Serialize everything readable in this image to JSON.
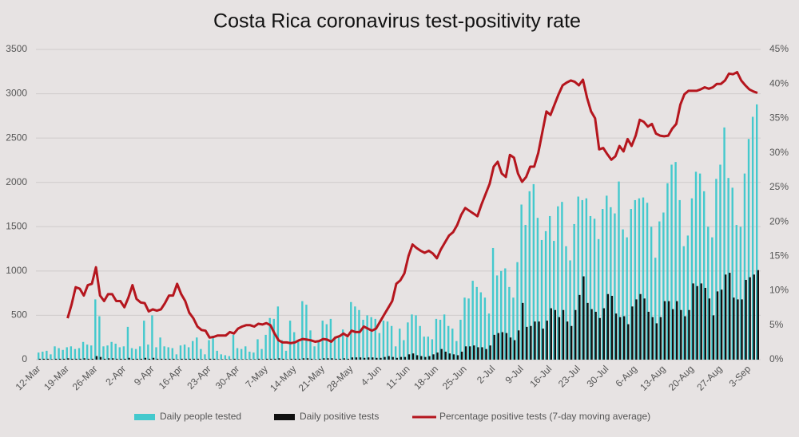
{
  "chart_data": {
    "type": "bar-line",
    "title": "Costa Rica coronavirus test-positivity rate",
    "categories": [
      "12-Mar",
      null,
      null,
      null,
      null,
      null,
      null,
      "19-Mar",
      null,
      null,
      null,
      null,
      null,
      null,
      "26-Mar",
      null,
      null,
      null,
      null,
      null,
      null,
      "2-Apr",
      null,
      null,
      null,
      null,
      null,
      null,
      "9-Apr",
      null,
      null,
      null,
      null,
      null,
      null,
      "16-Apr",
      null,
      null,
      null,
      null,
      null,
      null,
      "23-Apr",
      null,
      null,
      null,
      null,
      null,
      null,
      "30-Apr",
      null,
      null,
      null,
      null,
      null,
      null,
      "7-May",
      null,
      null,
      null,
      null,
      null,
      null,
      "14-May",
      null,
      null,
      null,
      null,
      null,
      null,
      "21-May",
      null,
      null,
      null,
      null,
      null,
      null,
      "28-May",
      null,
      null,
      null,
      null,
      null,
      null,
      "4-Jun",
      null,
      null,
      null,
      null,
      null,
      null,
      "11-Jun",
      null,
      null,
      null,
      null,
      null,
      null,
      "18-Jun",
      null,
      null,
      null,
      null,
      null,
      null,
      "25-Jun",
      null,
      null,
      null,
      null,
      null,
      null,
      "2-Jul",
      null,
      null,
      null,
      null,
      null,
      null,
      "9-Jul",
      null,
      null,
      null,
      null,
      null,
      null,
      "16-Jul",
      null,
      null,
      null,
      null,
      null,
      null,
      "23-Jul",
      null,
      null,
      null,
      null,
      null,
      null,
      "30-Jul",
      null,
      null,
      null,
      null,
      null,
      null,
      "6-Aug",
      null,
      null,
      null,
      null,
      null,
      null,
      "13-Aug",
      null,
      null,
      null,
      null,
      null,
      null,
      "20-Aug",
      null,
      null,
      null,
      null,
      null,
      null,
      "27-Aug",
      null,
      null,
      null,
      null,
      null,
      null,
      "3-Sep",
      null,
      null
    ],
    "series": [
      {
        "name": "Daily people tested",
        "color": "#44c9cd",
        "type": "bar",
        "values": [
          80,
          90,
          100,
          60,
          150,
          130,
          110,
          140,
          150,
          120,
          130,
          200,
          170,
          160,
          680,
          490,
          150,
          160,
          200,
          180,
          140,
          150,
          370,
          130,
          120,
          150,
          440,
          170,
          500,
          140,
          250,
          150,
          140,
          130,
          60,
          160,
          170,
          140,
          210,
          250,
          120,
          60,
          220,
          270,
          100,
          60,
          50,
          40,
          280,
          130,
          120,
          150,
          90,
          80,
          230,
          120,
          280,
          470,
          460,
          600,
          220,
          100,
          440,
          310,
          200,
          660,
          620,
          330,
          150,
          200,
          440,
          400,
          460,
          260,
          250,
          340,
          250,
          650,
          600,
          560,
          450,
          500,
          480,
          460,
          300,
          440,
          430,
          380,
          150,
          350,
          220,
          420,
          510,
          500,
          380,
          260,
          260,
          230,
          460,
          450,
          510,
          380,
          350,
          210,
          450,
          700,
          690,
          890,
          820,
          760,
          700,
          520,
          1260,
          950,
          1000,
          1030,
          820,
          700,
          1100,
          1750,
          1520,
          1900,
          1980,
          1600,
          1350,
          1450,
          1620,
          1340,
          1730,
          1780,
          1280,
          1120,
          1530,
          1840,
          1800,
          1820,
          1620,
          1590,
          1360,
          1700,
          1850,
          1720,
          1650,
          2010,
          1470,
          1380,
          1700,
          1800,
          1820,
          1830,
          1770,
          1500,
          1150,
          1560,
          1660,
          1990,
          2200,
          2230,
          1800,
          1280,
          1400,
          1820,
          2120,
          2100,
          1900,
          1500,
          1380,
          2040,
          2200,
          2620,
          2050,
          1940,
          1520,
          1500,
          2100,
          2490,
          2740,
          2880
        ]
      },
      {
        "name": "Daily positive tests",
        "color": "#111111",
        "type": "bar",
        "values": [
          10,
          10,
          10,
          5,
          10,
          10,
          10,
          15,
          10,
          10,
          10,
          15,
          10,
          10,
          40,
          30,
          10,
          15,
          15,
          10,
          10,
          10,
          20,
          10,
          10,
          10,
          20,
          10,
          20,
          10,
          10,
          10,
          10,
          10,
          5,
          10,
          10,
          10,
          10,
          10,
          5,
          5,
          10,
          10,
          5,
          5,
          5,
          5,
          10,
          5,
          5,
          5,
          5,
          5,
          10,
          5,
          10,
          10,
          10,
          15,
          10,
          5,
          10,
          10,
          10,
          15,
          15,
          10,
          5,
          10,
          15,
          15,
          15,
          10,
          10,
          15,
          10,
          25,
          25,
          25,
          20,
          25,
          25,
          20,
          20,
          30,
          40,
          30,
          20,
          30,
          30,
          60,
          70,
          50,
          40,
          30,
          40,
          60,
          80,
          120,
          90,
          70,
          60,
          50,
          90,
          150,
          150,
          160,
          140,
          140,
          120,
          160,
          280,
          300,
          310,
          300,
          250,
          220,
          330,
          640,
          370,
          380,
          430,
          430,
          350,
          440,
          580,
          560,
          480,
          560,
          430,
          380,
          560,
          730,
          940,
          640,
          570,
          540,
          470,
          580,
          740,
          720,
          520,
          480,
          490,
          400,
          600,
          680,
          740,
          690,
          540,
          480,
          410,
          480,
          660,
          660,
          570,
          660,
          560,
          490,
          560,
          860,
          830,
          860,
          810,
          690,
          500,
          770,
          790,
          960,
          980,
          700,
          680,
          680,
          900,
          930,
          960,
          1010
        ]
      },
      {
        "name": "Percentage positive tests (7-day moving average)",
        "color": "#b5161e",
        "type": "line",
        "axis": "y2",
        "values": [
          null,
          null,
          null,
          null,
          null,
          null,
          null,
          6,
          8,
          10.5,
          10.3,
          9.3,
          10.8,
          11,
          13.4,
          9.3,
          8.5,
          9.5,
          9.5,
          8.5,
          8.5,
          7.6,
          9,
          10.8,
          8.8,
          8.3,
          8.2,
          7,
          7.3,
          7.1,
          7.3,
          8.2,
          9.3,
          9.3,
          11,
          9.5,
          8.5,
          6.8,
          6,
          4.8,
          4.3,
          4.2,
          3.2,
          3.3,
          3.5,
          3.5,
          3.5,
          4,
          3.8,
          4.5,
          4.8,
          5,
          5,
          4.8,
          5.2,
          5.1,
          5.3,
          5,
          3.8,
          2.8,
          2.5,
          2.5,
          2.4,
          2.5,
          2.8,
          3,
          2.9,
          2.8,
          2.6,
          2.7,
          3,
          2.9,
          2.6,
          3.2,
          3.4,
          3.8,
          3.4,
          4.2,
          4,
          4,
          4.8,
          4.5,
          4.2,
          4.5,
          5.5,
          6.5,
          7.5,
          8.5,
          11,
          11.5,
          12.5,
          15,
          16.7,
          16.2,
          15.8,
          15.5,
          15.8,
          15.4,
          14.7,
          16,
          17,
          18,
          18.5,
          19.5,
          21,
          22,
          21.6,
          21.2,
          20.8,
          22.5,
          24,
          25.5,
          28,
          28.7,
          27,
          26.5,
          29.7,
          29.3,
          27,
          25.8,
          26.5,
          28,
          28,
          30,
          33,
          36,
          35.5,
          37,
          38.5,
          39.8,
          40.2,
          40.5,
          40.3,
          39.8,
          40.6,
          38,
          36,
          35,
          30.5,
          30.7,
          29.8,
          29,
          29.5,
          31,
          30.2,
          32,
          31,
          32.5,
          34.8,
          34.5,
          33.8,
          34.2,
          32.8,
          32.5,
          32.4,
          32.5,
          33.5,
          34.2,
          37,
          38.5,
          39,
          39,
          39,
          39.2,
          39.5,
          39.3,
          39.5,
          40,
          40,
          40.5,
          41.5,
          41.4,
          41.7,
          40.5,
          39.8,
          39.2,
          38.9,
          38.7
        ]
      }
    ],
    "ylim": [
      0,
      3500
    ],
    "yticks": [
      0,
      500,
      1000,
      1500,
      2000,
      2500,
      3000,
      3500
    ],
    "y2lim": [
      0,
      45
    ],
    "y2ticks": [
      {
        "value": 0,
        "label": "0%"
      },
      {
        "value": 5,
        "label": "5%"
      },
      {
        "value": 10,
        "label": "10%"
      },
      {
        "value": 15,
        "label": "15%"
      },
      {
        "value": 20,
        "label": "20%"
      },
      {
        "value": 25,
        "label": "25%"
      },
      {
        "value": 30,
        "label": "30%"
      },
      {
        "value": 35,
        "label": "35%"
      },
      {
        "value": 40,
        "label": "40%"
      },
      {
        "value": 45,
        "label": "45%"
      }
    ],
    "grid": true,
    "legend": "bottom"
  }
}
